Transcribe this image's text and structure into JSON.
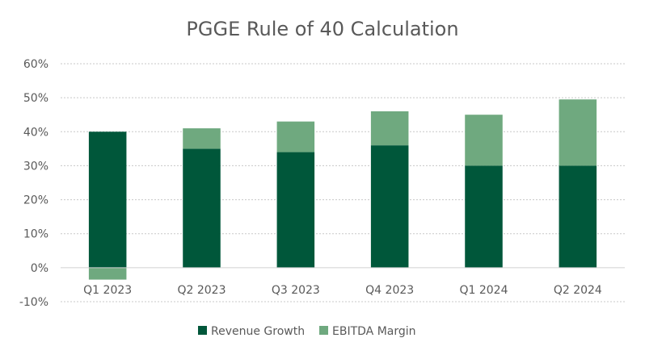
{
  "chart_data": {
    "type": "bar",
    "stacked": true,
    "title": "PGGE Rule of 40 Calculation",
    "categories": [
      "Q1 2023",
      "Q2 2023",
      "Q3 2023",
      "Q4 2023",
      "Q1 2024",
      "Q2 2024"
    ],
    "series": [
      {
        "name": "Revenue Growth",
        "values": [
          40,
          35,
          34,
          36,
          30,
          30
        ],
        "color": "#00573a"
      },
      {
        "name": "EBITDA Margin",
        "values": [
          -3.5,
          6,
          9,
          10,
          15,
          19.5
        ],
        "color": "#6fa97f"
      }
    ],
    "yticks": [
      "-10%",
      "0%",
      "10%",
      "20%",
      "30%",
      "40%",
      "50%",
      "60%"
    ],
    "ylim": [
      -10,
      60
    ],
    "xlabel": "",
    "ylabel": "",
    "grid": "horizontal-dotted",
    "legend": "bottom-center"
  }
}
